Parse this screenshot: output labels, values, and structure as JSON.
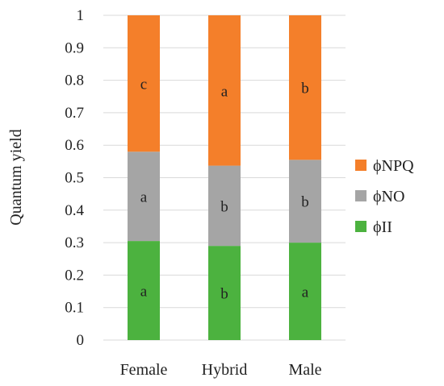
{
  "chart_data": {
    "type": "bar",
    "stacked": true,
    "title": "",
    "xlabel": "",
    "ylabel": "Quantum yield",
    "ylim": [
      0,
      1
    ],
    "yticks": [
      "0",
      "0.1",
      "0.2",
      "0.3",
      "0.4",
      "0.5",
      "0.6",
      "0.7",
      "0.8",
      "0.9",
      "1"
    ],
    "categories": [
      "Female",
      "Hybrid",
      "Male"
    ],
    "grid": true,
    "legend_position": "right",
    "series": [
      {
        "name": "ϕII",
        "color": "#4cb23f",
        "values": [
          0.305,
          0.29,
          0.3
        ],
        "labels": [
          "a",
          "b",
          "a"
        ]
      },
      {
        "name": "ϕNO",
        "color": "#a5a5a5",
        "values": [
          0.275,
          0.247,
          0.255
        ],
        "labels": [
          "a",
          "b",
          "b"
        ]
      },
      {
        "name": "ϕNPQ",
        "color": "#f47f2a",
        "values": [
          0.42,
          0.463,
          0.445
        ],
        "labels": [
          "c",
          "a",
          "b"
        ]
      }
    ],
    "legend_order": [
      "ϕNPQ",
      "ϕNO",
      "ϕII"
    ]
  }
}
